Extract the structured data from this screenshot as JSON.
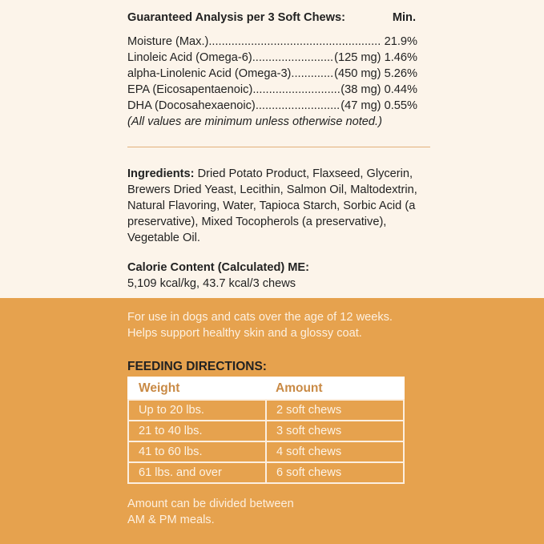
{
  "analysis": {
    "title": "Guaranteed Analysis per 3 Soft Chews:",
    "col": "Min.",
    "rows": [
      {
        "name": "Moisture (Max.) ",
        "amount": "",
        "value": "21.9%"
      },
      {
        "name": "Linoleic Acid (Omega-6)",
        "amount": "(125 mg)",
        "value": "1.46%"
      },
      {
        "name": "alpha-Linolenic Acid (Omega-3)",
        "amount": "(450 mg)",
        "value": "5.26%"
      },
      {
        "name": "EPA (Eicosapentaenoic) ",
        "amount": "(38 mg)",
        "value": "0.44%"
      },
      {
        "name": "DHA (Docosahexaenoic)",
        "amount": "(47 mg)",
        "value": "0.55%"
      }
    ],
    "note": "(All values are minimum unless otherwise noted.)"
  },
  "ingredients": {
    "label": "Ingredients:",
    "text": " Dried Potato Product, Flaxseed, Glycerin, Brewers Dried Yeast, Lecithin, Salmon Oil, Maltodextrin, Natural Flavoring, Water, Tapioca Starch, Sorbic Acid (a preservative), Mixed Tocopherols (a preservative), Vegetable Oil."
  },
  "calorie": {
    "label": "Calorie Content (Calculated) ME:",
    "value": "5,109 kcal/kg, 43.7 kcal/3 chews"
  },
  "usage": {
    "line1": "For use in dogs and cats over the age of 12 weeks.",
    "line2": "Helps support healthy skin and a glossy coat."
  },
  "feeding": {
    "title": "FEEDING DIRECTIONS:",
    "headers": [
      "Weight",
      "Amount"
    ],
    "rows": [
      [
        "Up to 20 lbs.",
        "2 soft chews"
      ],
      [
        "21 to 40 lbs.",
        "3 soft chews"
      ],
      [
        "41 to 60 lbs.",
        "4 soft chews"
      ],
      [
        "61 lbs. and over",
        "6 soft chews"
      ]
    ],
    "note1": "Amount can be divided between",
    "note2": "AM & PM meals."
  },
  "colors": {
    "cream": "#fcf4ea",
    "orange": "#e6a24e",
    "header_text": "#c98a45"
  }
}
